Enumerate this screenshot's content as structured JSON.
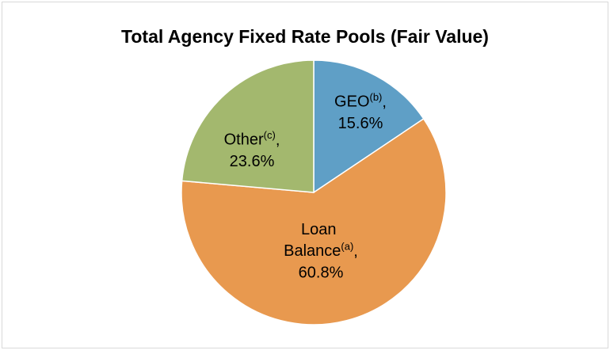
{
  "chart_data": {
    "type": "pie",
    "title": "Total Agency Fixed Rate Pools (Fair Value)",
    "categories": [
      "GEO",
      "Loan Balance",
      "Other"
    ],
    "label_marks": [
      "(b)",
      "(a)",
      "(c)"
    ],
    "label_separator": ",",
    "values": [
      15.6,
      60.8,
      23.6
    ],
    "value_labels": [
      "15.6%",
      "60.8%",
      "23.6%"
    ],
    "colors": [
      "#5f9fc6",
      "#e8994f",
      "#a3b86e"
    ]
  }
}
